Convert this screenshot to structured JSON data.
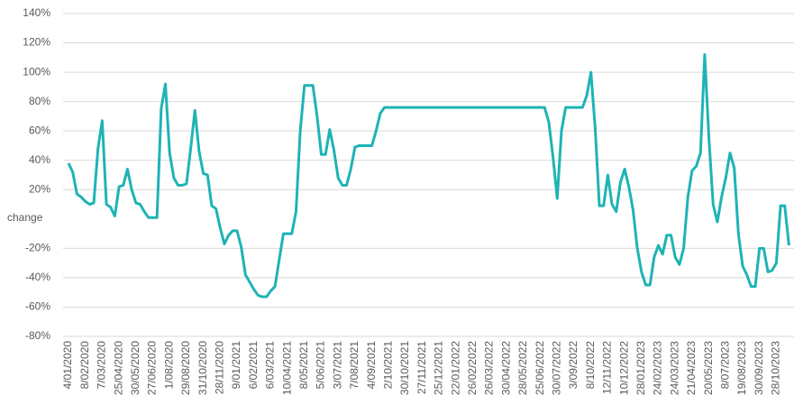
{
  "chart_data": {
    "type": "line",
    "y_label": "change",
    "categories": [
      "4/01/2020",
      null,
      null,
      null,
      "8/02/2020",
      null,
      null,
      null,
      "7/03/2020",
      null,
      null,
      null,
      "25/04/2020",
      null,
      null,
      null,
      "30/05/2020",
      null,
      null,
      null,
      "27/06/2020",
      null,
      null,
      null,
      "1/08/2020",
      null,
      null,
      null,
      "29/08/2020",
      null,
      null,
      null,
      "31/10/2020",
      null,
      null,
      null,
      "28/11/2020",
      null,
      null,
      null,
      "9/01/2021",
      null,
      null,
      null,
      "6/02/2021",
      null,
      null,
      null,
      "6/03/2021",
      null,
      null,
      null,
      "10/04/2021",
      null,
      null,
      null,
      "8/05/2021",
      null,
      null,
      null,
      "5/06/2021",
      null,
      null,
      null,
      "3/07/2021",
      null,
      null,
      null,
      "7/08/2021",
      null,
      null,
      null,
      "4/09/2021",
      null,
      null,
      null,
      "2/10/2021",
      null,
      null,
      null,
      "30/10/2021",
      null,
      null,
      null,
      "27/11/2021",
      null,
      null,
      null,
      "25/12/2021",
      null,
      null,
      null,
      "22/01/2022",
      null,
      null,
      null,
      "26/02/2022",
      null,
      null,
      null,
      "26/03/2022",
      null,
      null,
      null,
      "30/04/2022",
      null,
      null,
      null,
      "28/05/2022",
      null,
      null,
      null,
      "25/06/2022",
      null,
      null,
      null,
      "30/07/2022",
      null,
      null,
      null,
      "3/09/2022",
      null,
      null,
      null,
      "8/10/2022",
      null,
      null,
      null,
      "12/11/2022",
      null,
      null,
      null,
      "10/12/2022",
      null,
      null,
      null,
      "28/01/2023",
      null,
      null,
      null,
      "24/02/2023",
      null,
      null,
      null,
      "24/03/2023",
      null,
      null,
      null,
      "21/04/2023",
      null,
      null,
      null,
      "20/05/2023",
      null,
      null,
      null,
      "8/07/2023",
      null,
      null,
      null,
      "19/08/2023",
      null,
      null,
      null,
      "30/09/2023",
      null,
      null,
      null,
      "28/10/2023",
      null,
      null,
      null
    ],
    "series": [
      {
        "name": "change",
        "color": "#1fb3b5",
        "values": [
          38,
          32,
          17,
          15,
          12,
          10,
          11,
          48,
          67,
          10,
          8,
          2,
          22,
          23,
          34,
          20,
          11,
          10,
          5,
          1,
          1,
          1,
          75,
          92,
          45,
          28,
          23,
          23,
          24,
          48,
          74,
          46,
          31,
          30,
          9,
          7,
          -6,
          -17,
          -11,
          -8,
          -8,
          -19,
          -38,
          -43,
          -48,
          -52,
          -53,
          -53,
          -49,
          -46,
          -28,
          -10,
          -10,
          -10,
          5,
          60,
          91,
          91,
          91,
          70,
          44,
          44,
          61,
          47,
          28,
          23,
          23,
          34,
          49,
          50,
          50,
          50,
          50,
          60,
          72,
          76,
          76,
          76,
          76,
          76,
          76,
          76,
          76,
          76,
          76,
          76,
          76,
          76,
          76,
          76,
          76,
          76,
          76,
          76,
          76,
          76,
          76,
          76,
          76,
          76,
          76,
          76,
          76,
          76,
          76,
          76,
          76,
          76,
          76,
          76,
          76,
          76,
          76,
          76,
          66,
          42,
          14,
          60,
          76,
          76,
          76,
          76,
          76,
          84,
          100,
          62,
          9,
          9,
          30,
          10,
          5,
          25,
          34,
          22,
          6,
          -20,
          -36,
          -45,
          -45,
          -26,
          -18,
          -24,
          -11,
          -11,
          -26,
          -31,
          -20,
          15,
          33,
          36,
          45,
          112,
          55,
          10,
          -2,
          15,
          28,
          45,
          35,
          -10,
          -32,
          -38,
          -46,
          -46,
          -20,
          -20,
          -36,
          -35,
          -30,
          9,
          9,
          -18
        ]
      }
    ],
    "ylim": [
      -80,
      140
    ],
    "yticks": [
      {
        "value": -80,
        "label": "-80%"
      },
      {
        "value": -60,
        "label": "-60%"
      },
      {
        "value": -40,
        "label": "-40%"
      },
      {
        "value": -20,
        "label": "-20%"
      },
      {
        "value": 20,
        "label": "20%"
      },
      {
        "value": 40,
        "label": "40%"
      },
      {
        "value": 60,
        "label": "60%"
      },
      {
        "value": 80,
        "label": "80%"
      },
      {
        "value": 100,
        "label": "100%"
      },
      {
        "value": 120,
        "label": "120%"
      },
      {
        "value": 140,
        "label": "140%"
      }
    ],
    "grid": true
  }
}
